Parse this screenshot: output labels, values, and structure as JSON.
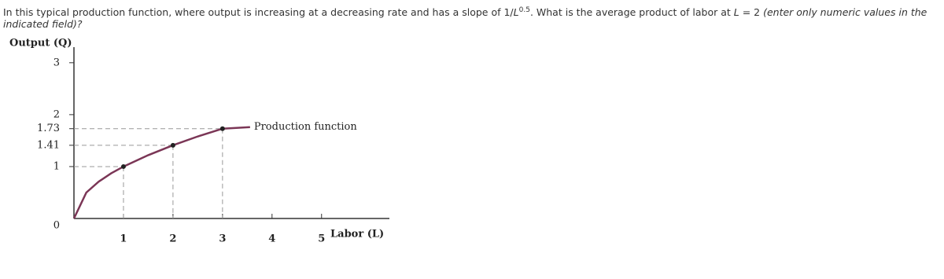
{
  "question": {
    "segments": [
      {
        "text": "In this typical production function, where output is increasing at a decreasing rate and has a slope of 1/",
        "style": "normal"
      },
      {
        "text": "L",
        "style": "italic"
      },
      {
        "text": "0.5",
        "style": "sup"
      },
      {
        "text": ". What is the average product of labor at ",
        "style": "normal"
      },
      {
        "text": "L",
        "style": "italic"
      },
      {
        "text": " = 2 ",
        "style": "normal"
      },
      {
        "text": "(enter only numeric values in the indicated field)?",
        "style": "italic"
      }
    ]
  },
  "chart_data": {
    "type": "line",
    "y_label": "Output (Q)",
    "x_label": "Labor (L)",
    "annotation": "Production function",
    "xlim": [
      0,
      6.37
    ],
    "ylim": [
      0,
      3.3
    ],
    "xticks": [
      1,
      2,
      3,
      4,
      5
    ],
    "yticks": [
      0,
      1,
      1.41,
      1.73,
      2,
      3
    ],
    "series": [
      {
        "name": "Production function",
        "color": "#7b3656",
        "x": [
          0,
          0.25,
          0.5,
          0.75,
          1,
          1.5,
          2,
          2.5,
          3
        ],
        "values": [
          0,
          0.5,
          0.71,
          0.87,
          1,
          1.22,
          1.41,
          1.58,
          1.73
        ]
      }
    ],
    "points": {
      "x": [
        1,
        2,
        3
      ],
      "values": [
        1,
        1.41,
        1.73
      ]
    }
  }
}
